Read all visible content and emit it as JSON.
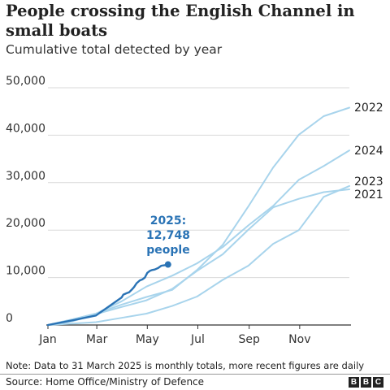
{
  "chart_data": {
    "type": "line",
    "title": "People crossing the English Channel in small boats",
    "subtitle": "Cumulative total detected by year",
    "ylim": [
      0,
      50000
    ],
    "yticks": [
      0,
      10000,
      20000,
      30000,
      40000,
      50000
    ],
    "ytick_labels": [
      "0",
      "10,000",
      "20,000",
      "30,000",
      "40,000",
      "50,000"
    ],
    "xlim": [
      "2025-01-01",
      "2025-12-31"
    ],
    "xticks": [
      "2025-01-01",
      "2025-03-01",
      "2025-05-01",
      "2025-07-01",
      "2025-09-01",
      "2025-11-01"
    ],
    "xtick_labels": [
      "Jan",
      "Mar",
      "May",
      "Jul",
      "Sep",
      "Nov"
    ],
    "grid": "horizontal",
    "series": [
      {
        "name": "2022",
        "color": "#a8d4ec",
        "x": [
          "2025-01-01",
          "2025-01-31",
          "2025-02-28",
          "2025-03-31",
          "2025-04-30",
          "2025-05-31",
          "2025-06-30",
          "2025-07-31",
          "2025-08-31",
          "2025-09-30",
          "2025-10-31",
          "2025-11-30",
          "2025-12-31"
        ],
        "values": [
          0,
          300,
          600,
          1500,
          2400,
          4000,
          6000,
          9500,
          12500,
          17100,
          20000,
          27000,
          29300
        ]
      },
      {
        "name": "2021",
        "color": "#a8d4ec",
        "x": [
          "2025-01-01",
          "2025-01-31",
          "2025-02-28",
          "2025-03-31",
          "2025-04-30",
          "2025-05-31",
          "2025-06-30",
          "2025-07-31",
          "2025-08-31",
          "2025-09-30",
          "2025-10-31",
          "2025-11-30",
          "2025-12-31"
        ],
        "values": [
          0,
          1200,
          2400,
          4300,
          5900,
          7400,
          11600,
          16900,
          25000,
          33200,
          40100,
          44000,
          45800
        ]
      },
      {
        "name": "2023",
        "color": "#a8d4ec",
        "x": [
          "2025-01-01",
          "2025-01-31",
          "2025-02-28",
          "2025-03-31",
          "2025-04-30",
          "2025-05-31",
          "2025-06-30",
          "2025-07-31",
          "2025-08-31",
          "2025-09-30",
          "2025-10-31",
          "2025-11-30",
          "2025-12-31"
        ],
        "values": [
          0,
          800,
          2300,
          3800,
          5200,
          7600,
          11400,
          14900,
          20100,
          24800,
          26600,
          28000,
          28600
        ]
      },
      {
        "name": "2024",
        "color": "#a8d4ec",
        "x": [
          "2025-01-01",
          "2025-01-31",
          "2025-02-28",
          "2025-03-31",
          "2025-04-30",
          "2025-05-31",
          "2025-06-30",
          "2025-07-31",
          "2025-08-31",
          "2025-09-30",
          "2025-10-31",
          "2025-11-30",
          "2025-12-31"
        ],
        "values": [
          0,
          1200,
          2400,
          5000,
          8100,
          10400,
          13000,
          16400,
          21000,
          25100,
          30600,
          33500,
          36800
        ]
      },
      {
        "name": "2025",
        "color": "#2a73b5",
        "x": [
          "2025-01-01",
          "2025-01-31",
          "2025-02-28",
          "2025-03-31",
          "2025-04-02",
          "2025-04-06",
          "2025-04-09",
          "2025-04-12",
          "2025-04-15",
          "2025-04-18",
          "2025-04-22",
          "2025-04-25",
          "2025-04-28",
          "2025-05-01",
          "2025-05-04",
          "2025-05-07",
          "2025-05-10",
          "2025-05-14",
          "2025-05-18",
          "2025-05-22",
          "2025-05-26"
        ],
        "values": [
          0,
          1000,
          2000,
          5800,
          6400,
          6700,
          6900,
          7400,
          8000,
          8800,
          9400,
          9600,
          10000,
          11000,
          11400,
          11600,
          11700,
          12000,
          12500,
          12600,
          12748
        ]
      }
    ],
    "annotation": {
      "lines": [
        "2025:",
        "12,748",
        "people"
      ],
      "value": 12748
    },
    "note": "Note: Data to 31 March 2025 is monthly totals, more recent figures are daily"
  },
  "footer": {
    "source": "Source: Home Office/Ministry of Defence",
    "logo_letters": [
      "B",
      "B",
      "C"
    ]
  }
}
